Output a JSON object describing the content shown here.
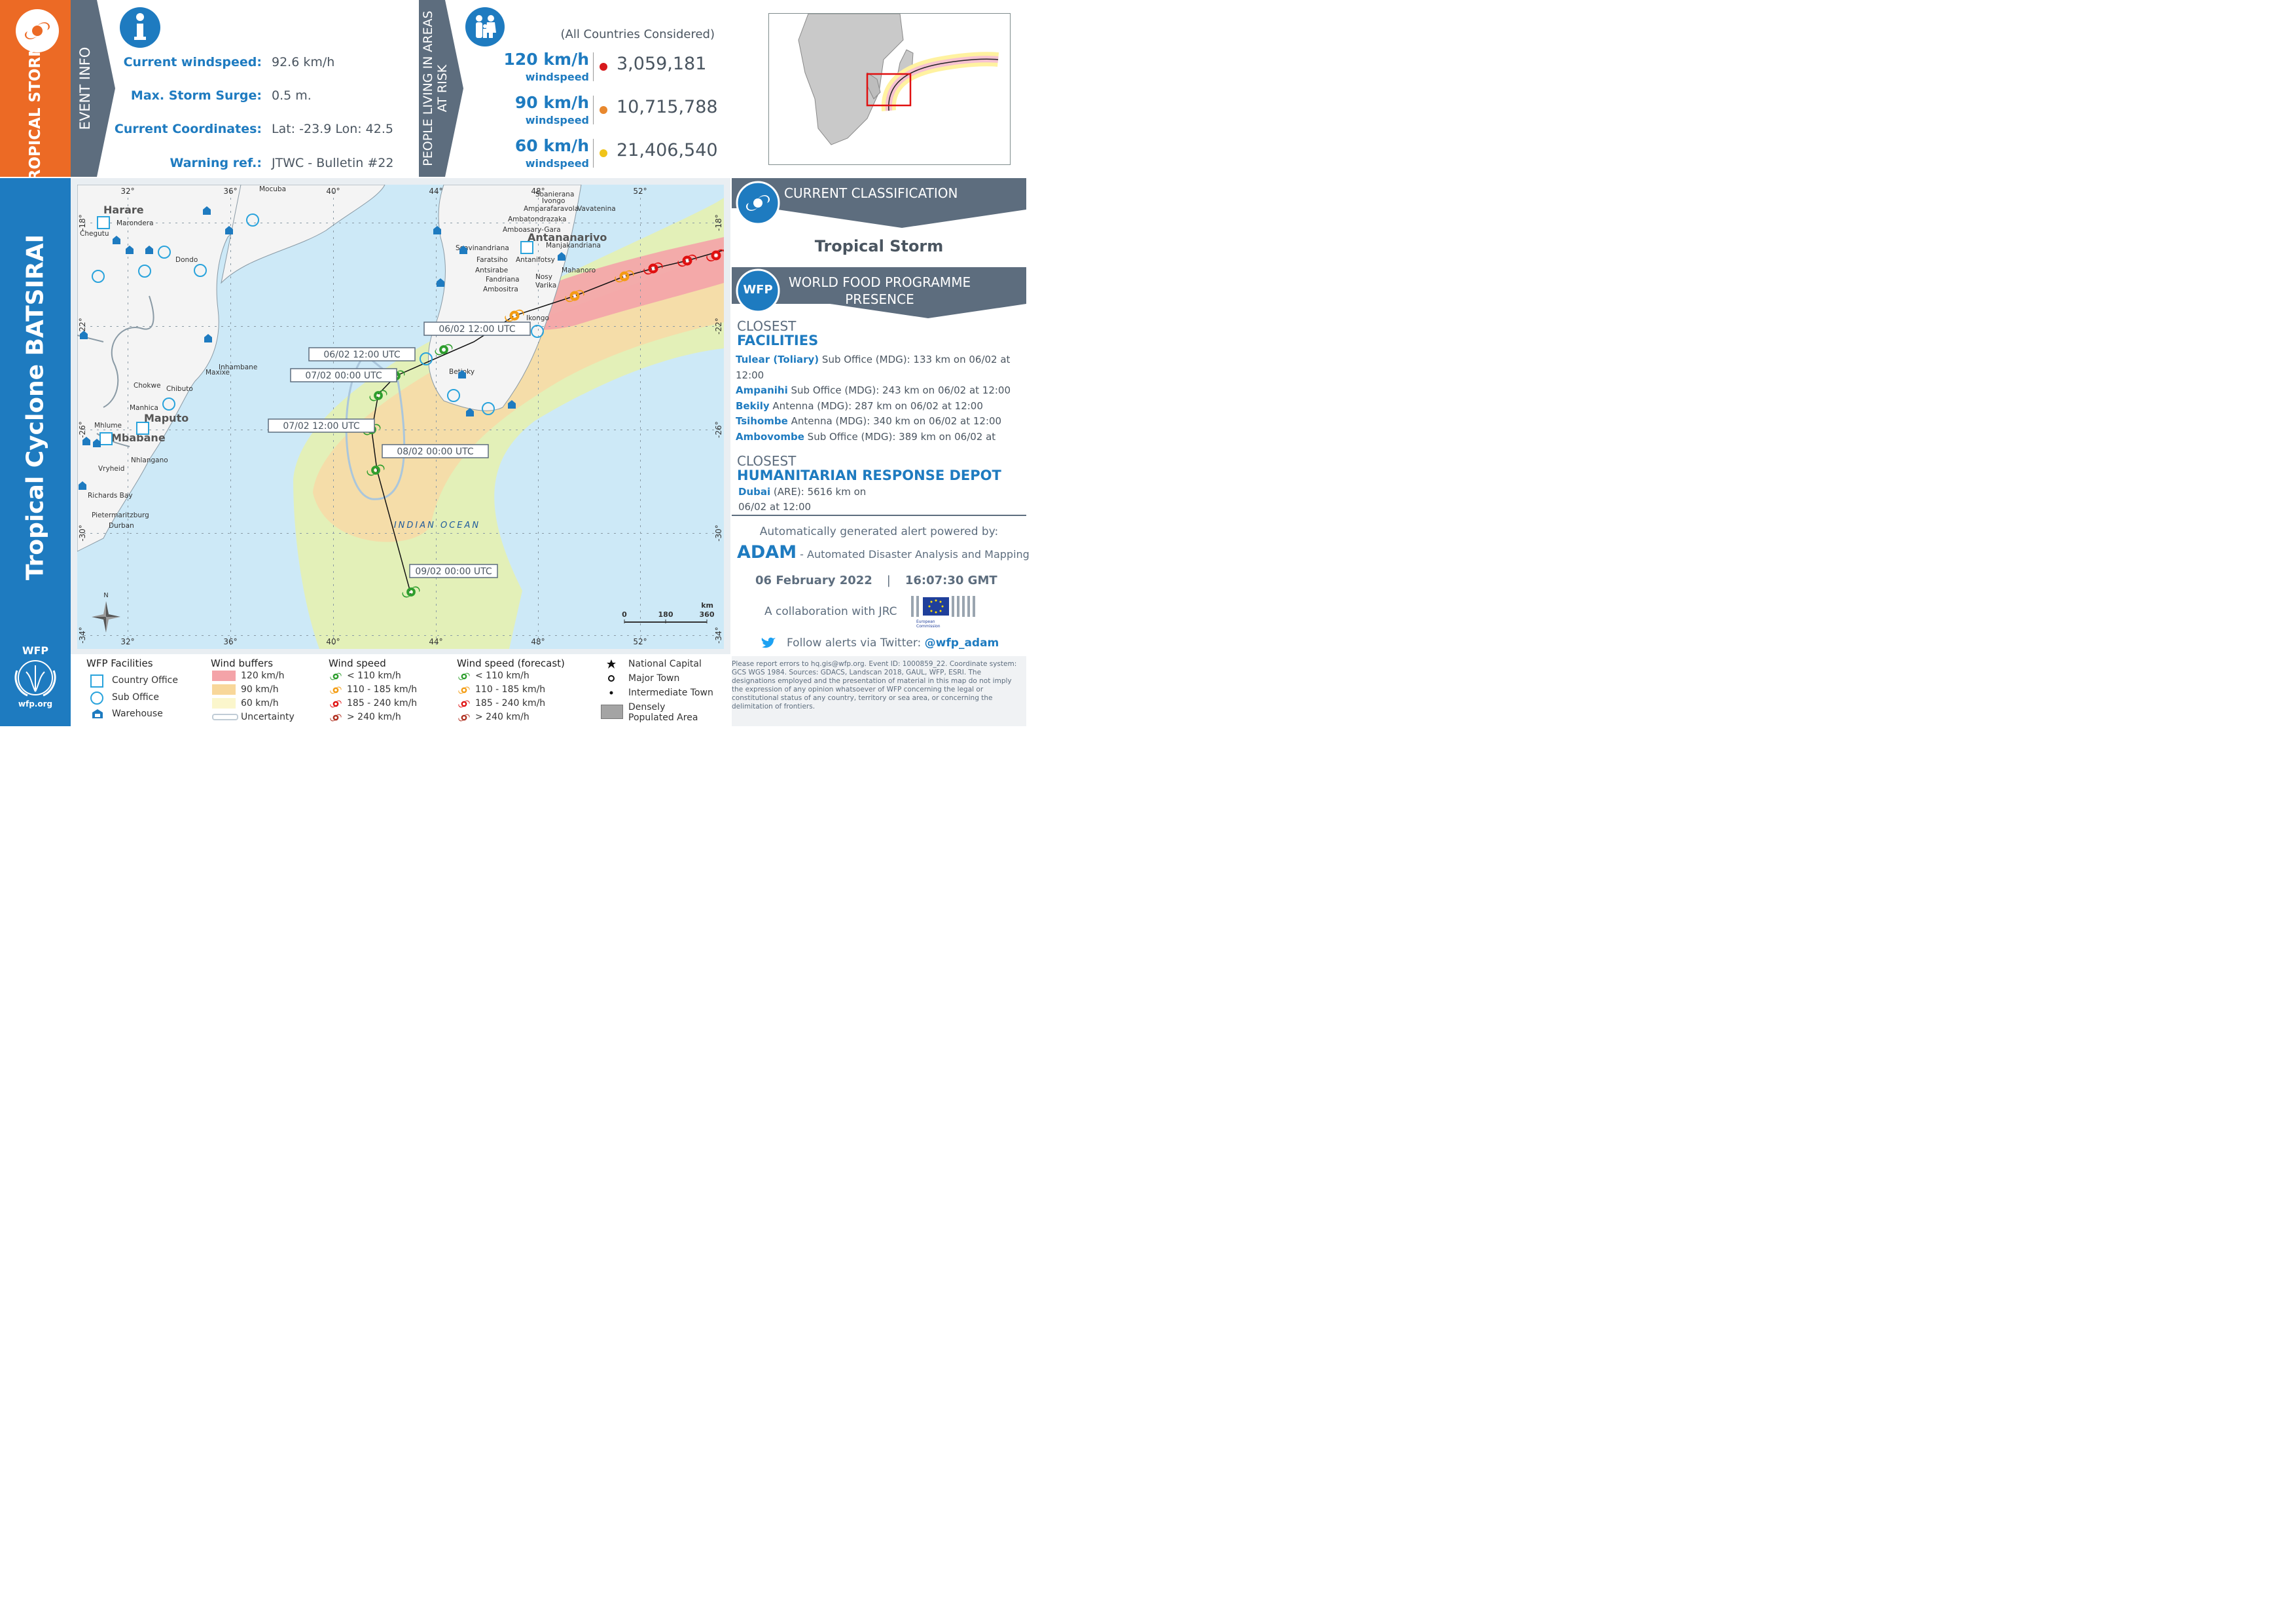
{
  "left_column": {
    "storm_type": "TROPICAL STORM",
    "cyclone_title": "Tropical Cyclone BATSIRAI",
    "wfp_label": "WFP",
    "wfp_url": "wfp.org"
  },
  "event_info": {
    "header": "EVENT INFO",
    "rows": [
      {
        "label": "Current windspeed:",
        "value": "92.6 km/h"
      },
      {
        "label": "Max. Storm Surge:",
        "value": "0.5 m."
      },
      {
        "label": "Current Coordinates:",
        "value": "Lat: -23.9 Lon: 42.5"
      },
      {
        "label": "Warning ref.:",
        "value": "JTWC - Bulletin #22"
      }
    ]
  },
  "people_at_risk": {
    "header": "PEOPLE LIVING IN AREAS AT RISK",
    "note": "(All Countries Considered)",
    "rows": [
      {
        "speed": "120 km/h",
        "sub": "windspeed",
        "value": "3,059,181",
        "color": "#d7191c"
      },
      {
        "speed": "90 km/h",
        "sub": "windspeed",
        "value": "10,715,788",
        "color": "#e8882e"
      },
      {
        "speed": "60 km/h",
        "sub": "windspeed",
        "value": "21,406,540",
        "color": "#f0c419"
      }
    ]
  },
  "classification": {
    "header": "CURRENT CLASSIFICATION",
    "value": "Tropical Storm"
  },
  "wfp_presence": {
    "badge": "WFP",
    "header": "WORLD FOOD PROGRAMME PRESENCE",
    "closest1": "CLOSEST",
    "facilities": "FACILITIES",
    "facility_rows": [
      {
        "name": "Tulear (Toliary)",
        "rest": " Sub Office (MDG): 133 km on 06/02 at 12:00"
      },
      {
        "name": "Ampanihi",
        "rest": " Sub Office (MDG): 243 km on 06/02 at 12:00"
      },
      {
        "name": "Bekily",
        "rest": " Antenna (MDG): 287 km on 06/02 at 12:00"
      },
      {
        "name": "Tsihombe",
        "rest": " Antenna (MDG): 340 km on 06/02 at 12:00"
      },
      {
        "name": "Ambovombe",
        "rest": " Sub Office (MDG): 389 km on 06/02 at"
      }
    ],
    "closest2": "CLOSEST",
    "depot_header": "HUMANITARIAN RESPONSE DEPOT",
    "depot_name": "Dubai",
    "depot_rest": " (ARE): 5616 km on",
    "depot_date": "06/02 at 12:00"
  },
  "adam": {
    "powered": "Automatically generated alert powered by:",
    "name": "ADAM",
    "desc": " - Automated Disaster Analysis and Mapping",
    "date": "06 February 2022",
    "sep": "|",
    "time": "16:07:30 GMT",
    "collab": "A collaboration with JRC",
    "ec_label": "European Commission",
    "twitter_text": "Follow alerts via Twitter: ",
    "twitter_handle": "@wfp_adam"
  },
  "disclaimer": "Please report errors to hq.gis@wfp.org. Event ID: 1000859_22. Coordinate system: GCS WGS 1984. Sources: GDACS, Landscan 2018, GAUL, WFP, ESRI. The designations employed and the presentation of material in this map do not imply the expression of any opinion whatsoever of WFP concerning the legal or constitutional status of any country, territory or sea area, or concerning the delimitation of frontiers.",
  "map": {
    "ocean_label": "INDIAN OCEAN",
    "lon_ticks": [
      "32°",
      "36°",
      "40°",
      "44°",
      "48°",
      "52°"
    ],
    "lat_ticks": [
      "-18°",
      "-22°",
      "-26°",
      "-30°",
      "-34°"
    ],
    "scale_unit": "km",
    "scale_values": [
      "0",
      "180",
      "360"
    ],
    "north": "N",
    "track_labels": [
      "06/02 12:00 UTC",
      "06/02 12:00 UTC",
      "07/02 00:00 UTC",
      "07/02 12:00 UTC",
      "08/02 00:00 UTC",
      "09/02 00:00 UTC"
    ],
    "capitals": [
      "Harare",
      "Antananarivo",
      "Maputo",
      "Mbabane"
    ],
    "towns": [
      "Chegutu",
      "Marondera",
      "Dondo",
      "Mocuba",
      "Maxixe",
      "Inhambane",
      "Chokwe",
      "Chibuto",
      "Manhica",
      "Mhlume",
      "Nhlangano",
      "Vryheid",
      "Richards Bay",
      "Pietermaritzburg",
      "Durban",
      "Soanierana",
      "Ivongo",
      "Amparafaravola",
      "Vavatenina",
      "Ambatondrazaka",
      "Amboasary-Gara",
      "Manjakandriana",
      "Soavinandriana",
      "Faratsiho",
      "Antanifotsy",
      "Antsirabe",
      "Mahanoro",
      "Fandriana",
      "Nosy",
      "Varika",
      "Ambositra",
      "Ikongo",
      "Betioky"
    ]
  },
  "legend": {
    "facilities_title": "WFP Facilities",
    "facilities": [
      "Country Office",
      "Sub Office",
      "Warehouse"
    ],
    "buffers_title": "Wind buffers",
    "buffers": [
      {
        "label": "120 km/h",
        "color": "#f4a3a8"
      },
      {
        "label": "90 km/h",
        "color": "#f8d79a"
      },
      {
        "label": "60 km/h",
        "color": "#fbf6cc"
      }
    ],
    "uncertainty": "Uncertainty",
    "speed_title": "Wind speed",
    "speed_forecast_title": "Wind speed (forecast)",
    "speeds": [
      {
        "label": "< 110 km/h",
        "color": "#2e9e2e"
      },
      {
        "label": "110 - 185 km/h",
        "color": "#f39c12"
      },
      {
        "label": "185 - 240 km/h",
        "color": "#e01010"
      },
      {
        "label": "> 240 km/h",
        "color": "#b03020"
      }
    ],
    "towns": [
      "National Capital",
      "Major Town",
      "Intermediate Town",
      "Densely Populated Area"
    ]
  },
  "colors": {
    "orange": "#ec6a25",
    "blue": "#1e7bc0",
    "grey": "#5d6d7e",
    "ocean": "#cde9f7"
  }
}
